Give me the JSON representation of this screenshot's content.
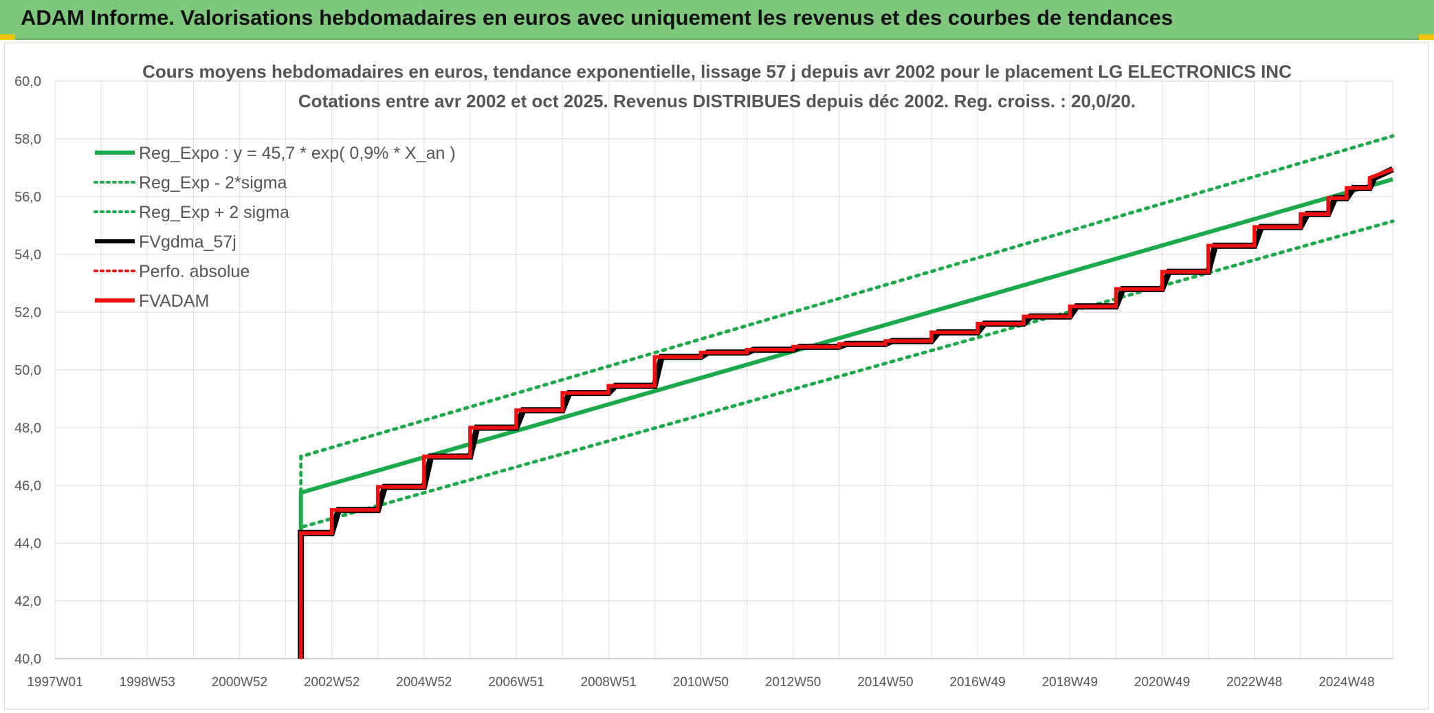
{
  "banner": {
    "title": "ADAM Informe. Valorisations hebdomadaires en euros avec uniquement les revenus et des courbes de tendances"
  },
  "colors": {
    "banner_bg": "#7ec87c",
    "reg_green": "#1aaa4a",
    "black": "#000000",
    "red": "#ee1111"
  },
  "chart_data": {
    "type": "line",
    "title": "Cours moyens hebdomadaires en euros, tendance exponentielle, lissage 57 j depuis avr 2002 pour le placement LG ELECTRONICS INC",
    "subtitle": "Cotations entre avr 2002 et oct 2025. Revenus DISTRIBUES depuis déc 2002. Reg. croiss. : 20,0/20.",
    "xlabel": "",
    "ylabel": "",
    "ylim": [
      40,
      60
    ],
    "xlim": [
      1997.0,
      2026.0
    ],
    "y_ticks": [
      "40,0",
      "42,0",
      "44,0",
      "46,0",
      "48,0",
      "50,0",
      "52,0",
      "54,0",
      "56,0",
      "58,0",
      "60,0"
    ],
    "x_ticks": [
      {
        "label": "1997W01",
        "x": 1997.0
      },
      {
        "label": "1998W53",
        "x": 1999.0
      },
      {
        "label": "2000W52",
        "x": 2001.0
      },
      {
        "label": "2002W52",
        "x": 2003.0
      },
      {
        "label": "2004W52",
        "x": 2005.0
      },
      {
        "label": "2006W51",
        "x": 2007.0
      },
      {
        "label": "2008W51",
        "x": 2009.0
      },
      {
        "label": "2010W50",
        "x": 2011.0
      },
      {
        "label": "2012W50",
        "x": 2013.0
      },
      {
        "label": "2014W50",
        "x": 2015.0
      },
      {
        "label": "2016W49",
        "x": 2017.0
      },
      {
        "label": "2018W49",
        "x": 2019.0
      },
      {
        "label": "2020W49",
        "x": 2021.0
      },
      {
        "label": "2022W48",
        "x": 2023.0
      },
      {
        "label": "2024W48",
        "x": 2025.0
      }
    ],
    "grid": true,
    "legend_position": "top-left",
    "series": [
      {
        "name": "Reg_Expo : y = 45,7 * exp( 0,9% *  X_an )",
        "style": "solid",
        "color": "#1aaa4a",
        "x": [
          2002.33,
          2002.33,
          2026.0
        ],
        "y": [
          44.35,
          45.75,
          56.6
        ]
      },
      {
        "name": "Reg_Exp - 2*sigma",
        "style": "dotted",
        "color": "#1aaa4a",
        "x": [
          2002.33,
          2002.33,
          2026.0
        ],
        "y": [
          44.35,
          44.55,
          55.15
        ]
      },
      {
        "name": "Reg_Exp + 2 sigma",
        "style": "dotted",
        "color": "#1aaa4a",
        "x": [
          2002.33,
          2002.33,
          2026.0
        ],
        "y": [
          44.35,
          47.0,
          58.1
        ]
      },
      {
        "name": "FVgdma_57j",
        "style": "solid",
        "color": "#000000",
        "x": [
          2002.33,
          2002.33,
          2003.0,
          2003.15,
          2004.0,
          2004.15,
          2005.0,
          2005.15,
          2006.0,
          2006.15,
          2007.0,
          2007.15,
          2008.0,
          2008.15,
          2009.0,
          2009.15,
          2010.0,
          2010.15,
          2011.0,
          2011.15,
          2012.0,
          2012.15,
          2013.0,
          2013.15,
          2014.0,
          2014.15,
          2015.0,
          2015.15,
          2016.0,
          2016.15,
          2017.0,
          2017.15,
          2018.0,
          2018.15,
          2019.0,
          2019.15,
          2020.0,
          2020.15,
          2021.0,
          2021.15,
          2022.0,
          2022.15,
          2023.0,
          2023.15,
          2024.0,
          2024.15,
          2024.6,
          2024.75,
          2025.0,
          2025.15,
          2025.5,
          2025.6,
          2026.0
        ],
        "y": [
          40.0,
          44.35,
          44.35,
          45.15,
          45.15,
          45.95,
          45.95,
          47.0,
          47.0,
          48.0,
          48.0,
          48.6,
          48.6,
          49.2,
          49.2,
          49.45,
          49.45,
          50.45,
          50.45,
          50.6,
          50.6,
          50.7,
          50.7,
          50.8,
          50.8,
          50.9,
          50.9,
          51.0,
          51.0,
          51.3,
          51.3,
          51.6,
          51.6,
          51.85,
          51.85,
          52.2,
          52.2,
          52.8,
          52.8,
          53.4,
          53.4,
          54.3,
          54.3,
          54.95,
          54.95,
          55.4,
          55.4,
          55.95,
          55.95,
          56.3,
          56.3,
          56.65,
          56.95
        ]
      },
      {
        "name": "Perfo. absolue",
        "style": "dotted",
        "color": "#ee1111",
        "x": [
          2002.33,
          2002.33,
          2003.0,
          2003.0,
          2004.0,
          2004.0,
          2005.0,
          2005.0,
          2006.0,
          2006.0,
          2007.0,
          2007.0,
          2008.0,
          2008.0,
          2009.0,
          2009.0,
          2010.0,
          2010.0,
          2011.0,
          2011.0,
          2012.0,
          2012.0,
          2013.0,
          2013.0,
          2014.0,
          2014.0,
          2015.0,
          2015.0,
          2016.0,
          2016.0,
          2017.0,
          2017.0,
          2018.0,
          2018.0,
          2019.0,
          2019.0,
          2020.0,
          2020.0,
          2021.0,
          2021.0,
          2022.0,
          2022.0,
          2023.0,
          2023.0,
          2024.0,
          2024.0,
          2024.6,
          2024.6,
          2025.0,
          2025.0,
          2025.5,
          2025.5,
          2026.0
        ],
        "y": [
          40.0,
          44.35,
          44.35,
          45.15,
          45.15,
          45.95,
          45.95,
          47.0,
          47.0,
          48.0,
          48.0,
          48.6,
          48.6,
          49.2,
          49.2,
          49.45,
          49.45,
          50.45,
          50.45,
          50.6,
          50.6,
          50.7,
          50.7,
          50.8,
          50.8,
          50.9,
          50.9,
          51.0,
          51.0,
          51.3,
          51.3,
          51.6,
          51.6,
          51.85,
          51.85,
          52.2,
          52.2,
          52.8,
          52.8,
          53.4,
          53.4,
          54.3,
          54.3,
          54.95,
          54.95,
          55.4,
          55.4,
          55.95,
          55.95,
          56.3,
          56.3,
          56.65,
          56.95
        ]
      },
      {
        "name": "FVADAM",
        "style": "solid",
        "color": "#ee1111",
        "x": [
          2002.33,
          2002.33,
          2003.0,
          2003.0,
          2004.0,
          2004.0,
          2005.0,
          2005.0,
          2006.0,
          2006.0,
          2007.0,
          2007.0,
          2008.0,
          2008.0,
          2009.0,
          2009.0,
          2010.0,
          2010.0,
          2011.0,
          2011.0,
          2012.0,
          2012.0,
          2013.0,
          2013.0,
          2014.0,
          2014.0,
          2015.0,
          2015.0,
          2016.0,
          2016.0,
          2017.0,
          2017.0,
          2018.0,
          2018.0,
          2019.0,
          2019.0,
          2020.0,
          2020.0,
          2021.0,
          2021.0,
          2022.0,
          2022.0,
          2023.0,
          2023.0,
          2024.0,
          2024.0,
          2024.6,
          2024.6,
          2025.0,
          2025.0,
          2025.5,
          2025.5,
          2026.0
        ],
        "y": [
          40.0,
          44.35,
          44.35,
          45.15,
          45.15,
          45.95,
          45.95,
          47.0,
          47.0,
          48.0,
          48.0,
          48.6,
          48.6,
          49.2,
          49.2,
          49.45,
          49.45,
          50.45,
          50.45,
          50.6,
          50.6,
          50.7,
          50.7,
          50.8,
          50.8,
          50.9,
          50.9,
          51.0,
          51.0,
          51.3,
          51.3,
          51.6,
          51.6,
          51.85,
          51.85,
          52.2,
          52.2,
          52.8,
          52.8,
          53.4,
          53.4,
          54.3,
          54.3,
          54.95,
          54.95,
          55.4,
          55.4,
          55.95,
          55.95,
          56.3,
          56.3,
          56.65,
          56.95
        ]
      }
    ]
  }
}
